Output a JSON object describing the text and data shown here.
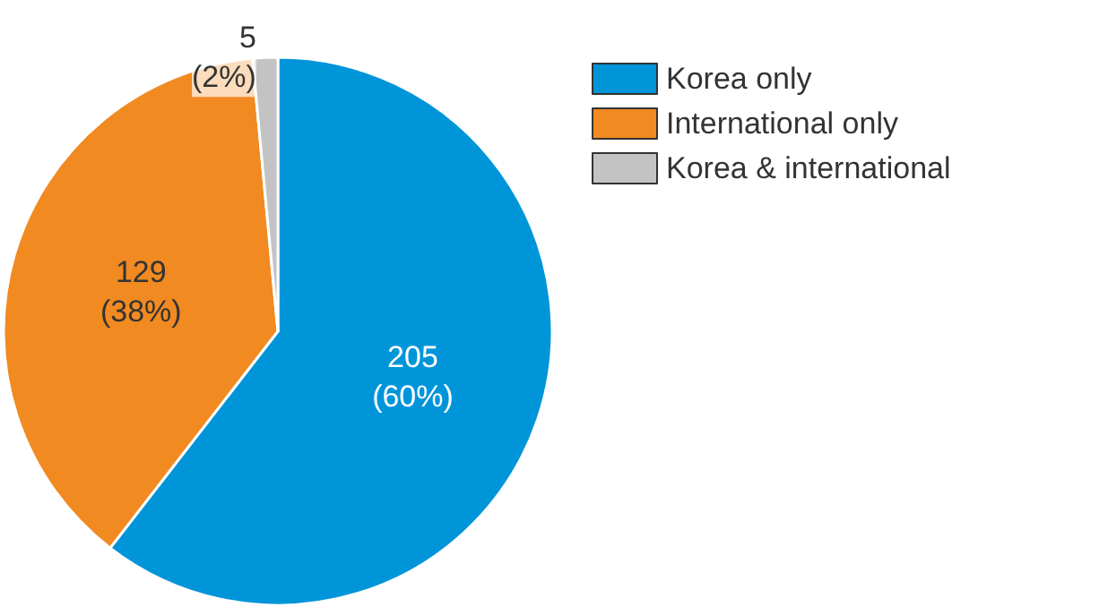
{
  "chart_data": {
    "type": "pie",
    "categories": [
      "Korea only",
      "International only",
      "Korea & international"
    ],
    "values": [
      205,
      129,
      5
    ],
    "colors": [
      "#0095d9",
      "#f18a21",
      "#c3c3c3"
    ],
    "value_labels": [
      "205\n(60%)",
      "129\n(38%)",
      "5\n(2%)"
    ],
    "legend": "top right"
  }
}
